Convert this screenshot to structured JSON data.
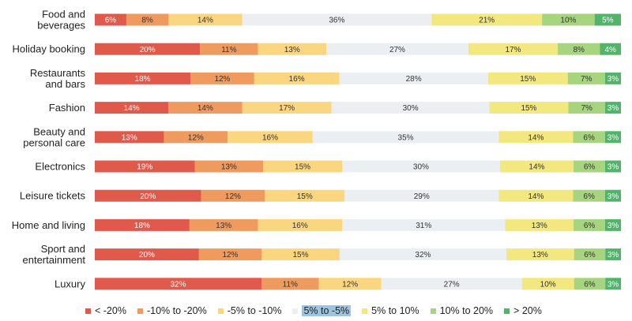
{
  "chart_data": {
    "type": "bar",
    "orientation": "horizontal",
    "stacked": true,
    "normalized": true,
    "categories": [
      "Food and beverages",
      "Holiday booking",
      "Restaurants and bars",
      "Fashion",
      "Beauty and personal care",
      "Electronics",
      "Leisure tickets",
      "Home and living",
      "Sport and entertainment",
      "Luxury"
    ],
    "category_lines": [
      [
        "Food and",
        "beverages"
      ],
      [
        "Holiday booking"
      ],
      [
        "Restaurants",
        "and bars"
      ],
      [
        "Fashion"
      ],
      [
        "Beauty and",
        "personal care"
      ],
      [
        "Electronics"
      ],
      [
        "Leisure tickets"
      ],
      [
        "Home and living"
      ],
      [
        "Sport and",
        "entertainment"
      ],
      [
        "Luxury"
      ]
    ],
    "series": [
      {
        "name": "< -20%",
        "color": "#e05a4c",
        "label_color": "#ffffff",
        "values": [
          6,
          20,
          18,
          14,
          13,
          19,
          20,
          18,
          20,
          32
        ]
      },
      {
        "name": "-10% to -20%",
        "color": "#ef9a5e",
        "label_color": "#333333",
        "values": [
          8,
          11,
          12,
          14,
          12,
          13,
          12,
          13,
          12,
          11
        ]
      },
      {
        "name": "-5% to -10%",
        "color": "#fbd681",
        "label_color": "#333333",
        "values": [
          14,
          13,
          16,
          17,
          16,
          15,
          15,
          16,
          15,
          12
        ]
      },
      {
        "name": "5% to -5%",
        "color": "#eceff1",
        "label_color": "#333333",
        "values": [
          36,
          27,
          28,
          30,
          35,
          30,
          29,
          31,
          32,
          27
        ]
      },
      {
        "name": "5% to 10%",
        "color": "#f3e77f",
        "label_color": "#333333",
        "values": [
          21,
          17,
          15,
          15,
          14,
          14,
          14,
          13,
          13,
          10
        ]
      },
      {
        "name": "10% to 20%",
        "color": "#a7d47f",
        "label_color": "#333333",
        "values": [
          10,
          8,
          7,
          7,
          6,
          6,
          6,
          6,
          6,
          6
        ]
      },
      {
        "name": "> 20%",
        "color": "#52b36a",
        "label_color": "#ffffff",
        "values": [
          5,
          4,
          3,
          3,
          3,
          3,
          3,
          3,
          3,
          3
        ]
      }
    ],
    "value_suffix": "%",
    "legend_position": "bottom",
    "legend_highlight": "5% to -5%",
    "grid": false
  }
}
